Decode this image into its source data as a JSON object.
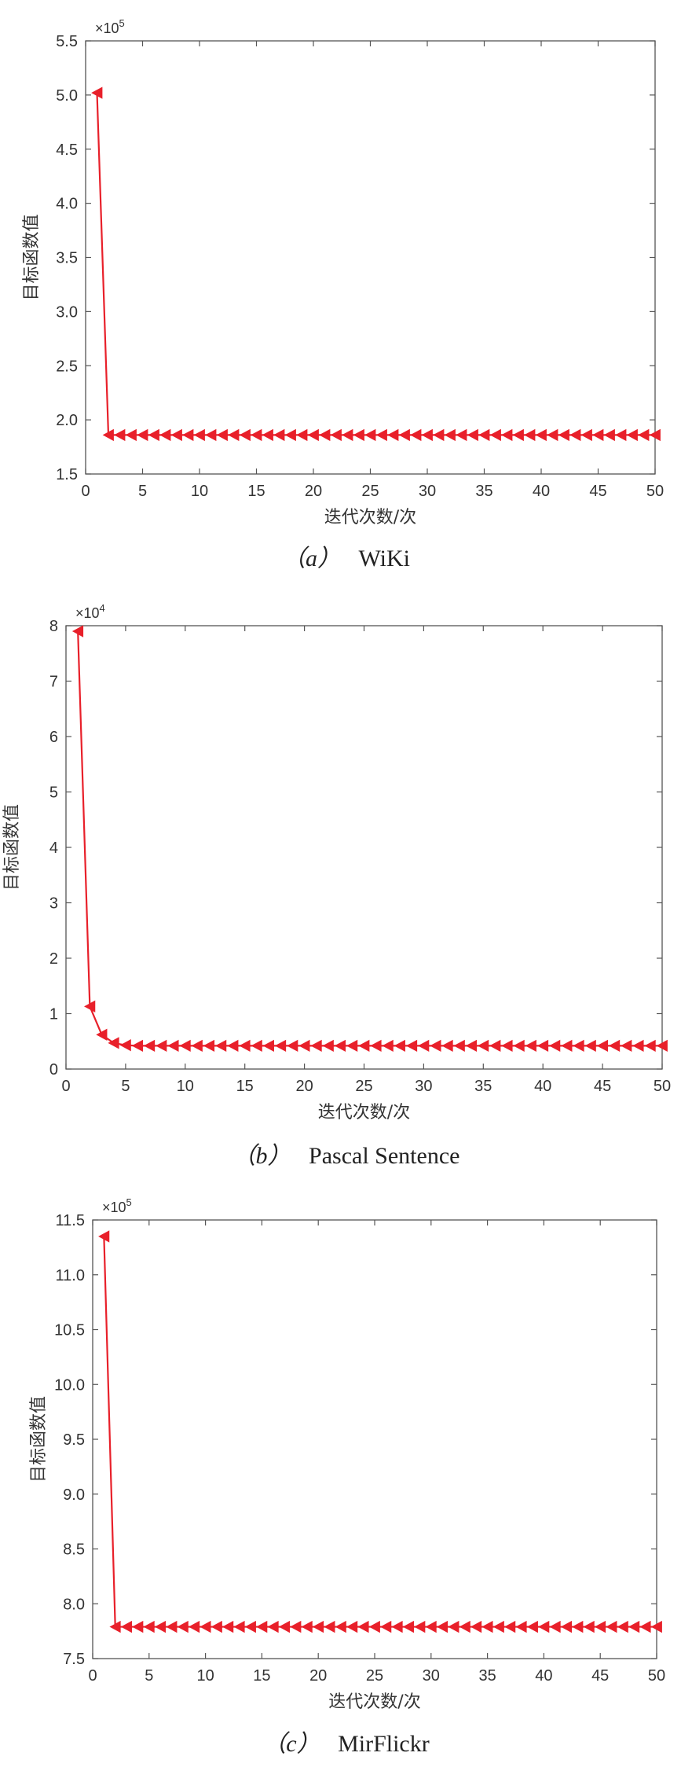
{
  "chart_data": [
    {
      "type": "line",
      "caption_label": "（a）",
      "caption_name": "WiKi",
      "xlabel": "迭代次数/次",
      "ylabel": "目标函数值",
      "multiplier_base": "×10",
      "multiplier_exp": "5",
      "xlim": [
        0,
        50
      ],
      "ylim": [
        1.5,
        5.5
      ],
      "xticks": [
        0,
        5,
        10,
        15,
        20,
        25,
        30,
        35,
        40,
        45,
        50
      ],
      "yticks": [
        "1.5",
        "2.0",
        "2.5",
        "3.0",
        "3.5",
        "4.0",
        "4.5",
        "5.0",
        "5.5"
      ],
      "marker": "left-triangle",
      "color": "#e8202a",
      "grid": false,
      "series": [
        {
          "x": [
            1,
            2,
            3,
            4,
            5,
            6,
            7,
            8,
            9,
            10,
            11,
            12,
            13,
            14,
            15,
            16,
            17,
            18,
            19,
            20,
            21,
            22,
            23,
            24,
            25,
            26,
            27,
            28,
            29,
            30,
            31,
            32,
            33,
            34,
            35,
            36,
            37,
            38,
            39,
            40,
            41,
            42,
            43,
            44,
            45,
            46,
            47,
            48,
            49,
            50
          ],
          "y": [
            5.02,
            1.86,
            1.86,
            1.86,
            1.86,
            1.86,
            1.86,
            1.86,
            1.86,
            1.86,
            1.86,
            1.86,
            1.86,
            1.86,
            1.86,
            1.86,
            1.86,
            1.86,
            1.86,
            1.86,
            1.86,
            1.86,
            1.86,
            1.86,
            1.86,
            1.86,
            1.86,
            1.86,
            1.86,
            1.86,
            1.86,
            1.86,
            1.86,
            1.86,
            1.86,
            1.86,
            1.86,
            1.86,
            1.86,
            1.86,
            1.86,
            1.86,
            1.86,
            1.86,
            1.86,
            1.86,
            1.86,
            1.86,
            1.86,
            1.86
          ]
        }
      ]
    },
    {
      "type": "line",
      "caption_label": "（b）",
      "caption_name": "Pascal Sentence",
      "xlabel": "迭代次数/次",
      "ylabel": "目标函数值",
      "multiplier_base": "×10",
      "multiplier_exp": "4",
      "xlim": [
        0,
        50
      ],
      "ylim": [
        0,
        8
      ],
      "xticks": [
        0,
        5,
        10,
        15,
        20,
        25,
        30,
        35,
        40,
        45,
        50
      ],
      "yticks": [
        "0",
        "1",
        "2",
        "3",
        "4",
        "5",
        "6",
        "7",
        "8"
      ],
      "marker": "left-triangle",
      "color": "#e8202a",
      "grid": false,
      "series": [
        {
          "x": [
            1,
            2,
            3,
            4,
            5,
            6,
            7,
            8,
            9,
            10,
            11,
            12,
            13,
            14,
            15,
            16,
            17,
            18,
            19,
            20,
            21,
            22,
            23,
            24,
            25,
            26,
            27,
            28,
            29,
            30,
            31,
            32,
            33,
            34,
            35,
            36,
            37,
            38,
            39,
            40,
            41,
            42,
            43,
            44,
            45,
            46,
            47,
            48,
            49,
            50
          ],
          "y": [
            7.9,
            1.13,
            0.62,
            0.47,
            0.43,
            0.42,
            0.42,
            0.42,
            0.42,
            0.42,
            0.42,
            0.42,
            0.42,
            0.42,
            0.42,
            0.42,
            0.42,
            0.42,
            0.42,
            0.42,
            0.42,
            0.42,
            0.42,
            0.42,
            0.42,
            0.42,
            0.42,
            0.42,
            0.42,
            0.42,
            0.42,
            0.42,
            0.42,
            0.42,
            0.42,
            0.42,
            0.42,
            0.42,
            0.42,
            0.42,
            0.42,
            0.42,
            0.42,
            0.42,
            0.42,
            0.42,
            0.42,
            0.42,
            0.42,
            0.42
          ]
        }
      ]
    },
    {
      "type": "line",
      "caption_label": "（c）",
      "caption_name": "MirFlickr",
      "xlabel": "迭代次数/次",
      "ylabel": "目标函数值",
      "multiplier_base": "×10",
      "multiplier_exp": "5",
      "xlim": [
        0,
        50
      ],
      "ylim": [
        7.5,
        11.5
      ],
      "xticks": [
        0,
        5,
        10,
        15,
        20,
        25,
        30,
        35,
        40,
        45,
        50
      ],
      "yticks": [
        "7.5",
        "8.0",
        "8.5",
        "9.0",
        "9.5",
        "10.0",
        "10.5",
        "11.0",
        "11.5"
      ],
      "marker": "left-triangle",
      "color": "#e8202a",
      "grid": false,
      "series": [
        {
          "x": [
            1,
            2,
            3,
            4,
            5,
            6,
            7,
            8,
            9,
            10,
            11,
            12,
            13,
            14,
            15,
            16,
            17,
            18,
            19,
            20,
            21,
            22,
            23,
            24,
            25,
            26,
            27,
            28,
            29,
            30,
            31,
            32,
            33,
            34,
            35,
            36,
            37,
            38,
            39,
            40,
            41,
            42,
            43,
            44,
            45,
            46,
            47,
            48,
            49,
            50
          ],
          "y": [
            11.35,
            7.79,
            7.79,
            7.79,
            7.79,
            7.79,
            7.79,
            7.79,
            7.79,
            7.79,
            7.79,
            7.79,
            7.79,
            7.79,
            7.79,
            7.79,
            7.79,
            7.79,
            7.79,
            7.79,
            7.79,
            7.79,
            7.79,
            7.79,
            7.79,
            7.79,
            7.79,
            7.79,
            7.79,
            7.79,
            7.79,
            7.79,
            7.79,
            7.79,
            7.79,
            7.79,
            7.79,
            7.79,
            7.79,
            7.79,
            7.79,
            7.79,
            7.79,
            7.79,
            7.79,
            7.79,
            7.79,
            7.79,
            7.79,
            7.79
          ]
        }
      ]
    }
  ]
}
